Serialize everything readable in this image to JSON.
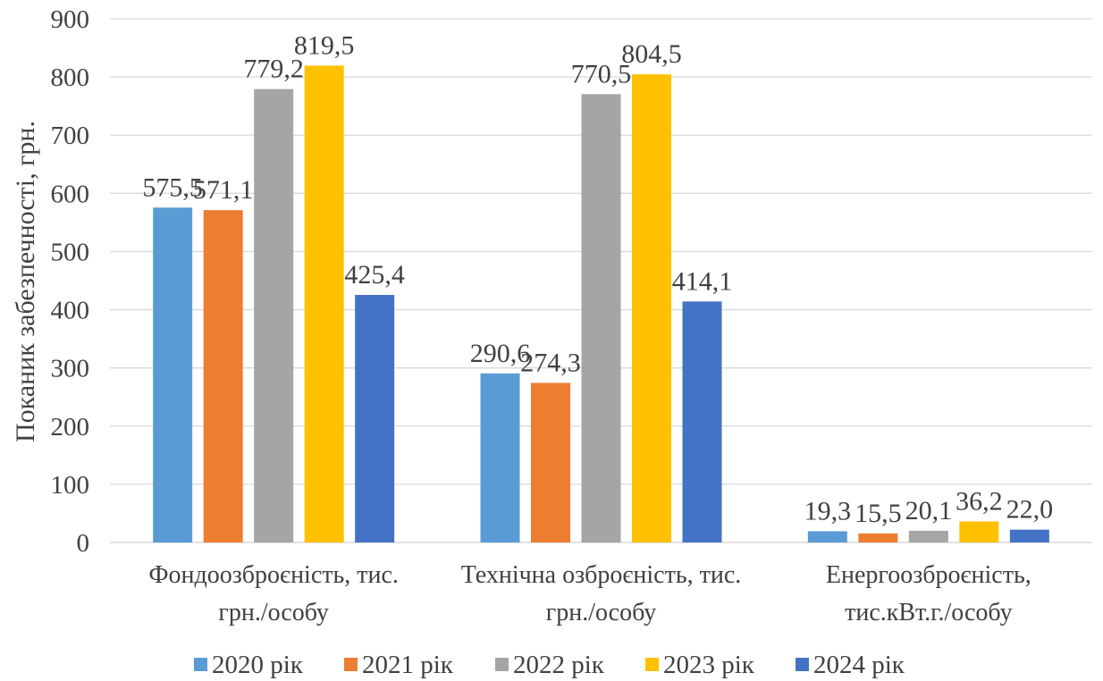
{
  "chart_data": {
    "type": "bar",
    "title": "",
    "xlabel": "",
    "ylabel": "Поканик забезпечності, грн.",
    "ylim": [
      0,
      900
    ],
    "yticks": [
      "0",
      "100",
      "200",
      "300",
      "400",
      "500",
      "600",
      "700",
      "800",
      "900"
    ],
    "grid": true,
    "legend_position": "bottom",
    "categories": [
      [
        "Фондоозброєність, тис.",
        "грн./особу"
      ],
      [
        "Технічна озброєність, тис.",
        "грн./особу"
      ],
      [
        "Енергоозброєність,",
        "тис.кВт.г./особу"
      ]
    ],
    "series": [
      {
        "name": "2020 рік",
        "color": "#5b9bd5",
        "values": [
          575.5,
          290.6,
          19.3
        ],
        "labels": [
          "575,5",
          "290,6",
          "19,3"
        ]
      },
      {
        "name": "2021 рік",
        "color": "#ed7d31",
        "values": [
          571.1,
          274.3,
          15.5
        ],
        "labels": [
          "571,1",
          "274,3",
          "15,5"
        ]
      },
      {
        "name": "2022 рік",
        "color": "#a5a5a5",
        "values": [
          779.2,
          770.5,
          20.1
        ],
        "labels": [
          "779,2",
          "770,5",
          "20,1"
        ]
      },
      {
        "name": "2023 рік",
        "color": "#ffc000",
        "values": [
          819.5,
          804.5,
          36.2
        ],
        "labels": [
          "819,5",
          "804,5",
          "36,2"
        ]
      },
      {
        "name": "2024 рік",
        "color": "#4472c4",
        "values": [
          425.4,
          414.1,
          22.0
        ],
        "labels": [
          "425,4",
          "414,1",
          "22,0"
        ]
      }
    ]
  }
}
